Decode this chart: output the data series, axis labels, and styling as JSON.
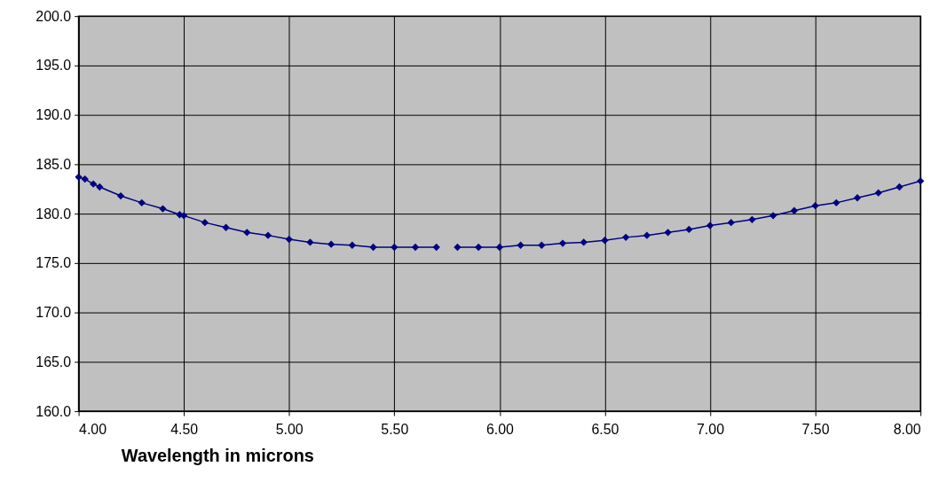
{
  "chart_data": {
    "type": "line",
    "xlabel": "Wavelength in microns",
    "x": [
      4.0,
      4.03,
      4.07,
      4.1,
      4.2,
      4.3,
      4.4,
      4.48,
      4.5,
      4.6,
      4.7,
      4.8,
      4.9,
      5.0,
      5.1,
      5.2,
      5.3,
      5.4,
      5.5,
      5.6,
      5.7,
      5.75,
      5.8,
      5.9,
      6.0,
      6.1,
      6.2,
      6.3,
      6.4,
      6.5,
      6.6,
      6.7,
      6.8,
      6.9,
      7.0,
      7.1,
      7.2,
      7.3,
      7.4,
      7.5,
      7.6,
      7.7,
      7.8,
      7.9,
      8.0
    ],
    "series": [
      {
        "color": "#000080",
        "values": [
          183.7,
          183.5,
          183.0,
          182.7,
          181.8,
          181.1,
          180.5,
          179.9,
          179.8,
          179.1,
          178.6,
          178.1,
          177.8,
          177.4,
          177.1,
          176.9,
          176.8,
          176.6,
          176.6,
          176.6,
          176.6,
          null,
          176.6,
          176.6,
          176.6,
          176.8,
          176.8,
          177.0,
          177.1,
          177.3,
          177.6,
          177.8,
          178.1,
          178.4,
          178.8,
          179.1,
          179.4,
          179.8,
          180.3,
          180.8,
          181.1,
          181.6,
          182.1,
          182.7,
          183.3
        ]
      }
    ],
    "xlim": [
      4.0,
      8.0
    ],
    "xticks": [
      {
        "value": 4.0,
        "label": "4.00"
      },
      {
        "value": 4.5,
        "label": "4.50"
      },
      {
        "value": 5.0,
        "label": "5.00"
      },
      {
        "value": 5.5,
        "label": "5.50"
      },
      {
        "value": 6.0,
        "label": "6.00"
      },
      {
        "value": 6.5,
        "label": "6.50"
      },
      {
        "value": 7.0,
        "label": "7.00"
      },
      {
        "value": 7.5,
        "label": "7.50"
      },
      {
        "value": 8.0,
        "label": "8.00"
      }
    ],
    "ylim": [
      160.0,
      200.0
    ],
    "yticks": [
      {
        "value": 160,
        "label": "160.0"
      },
      {
        "value": 165,
        "label": "165.0"
      },
      {
        "value": 170,
        "label": "170.0"
      },
      {
        "value": 175,
        "label": "175.0"
      },
      {
        "value": 180,
        "label": "180.0"
      },
      {
        "value": 185,
        "label": "185.0"
      },
      {
        "value": 190,
        "label": "190.0"
      },
      {
        "value": 195,
        "label": "195.0"
      },
      {
        "value": 200,
        "label": "200.0"
      }
    ],
    "grid": true,
    "marker": "diamond",
    "line_style": "solid"
  }
}
